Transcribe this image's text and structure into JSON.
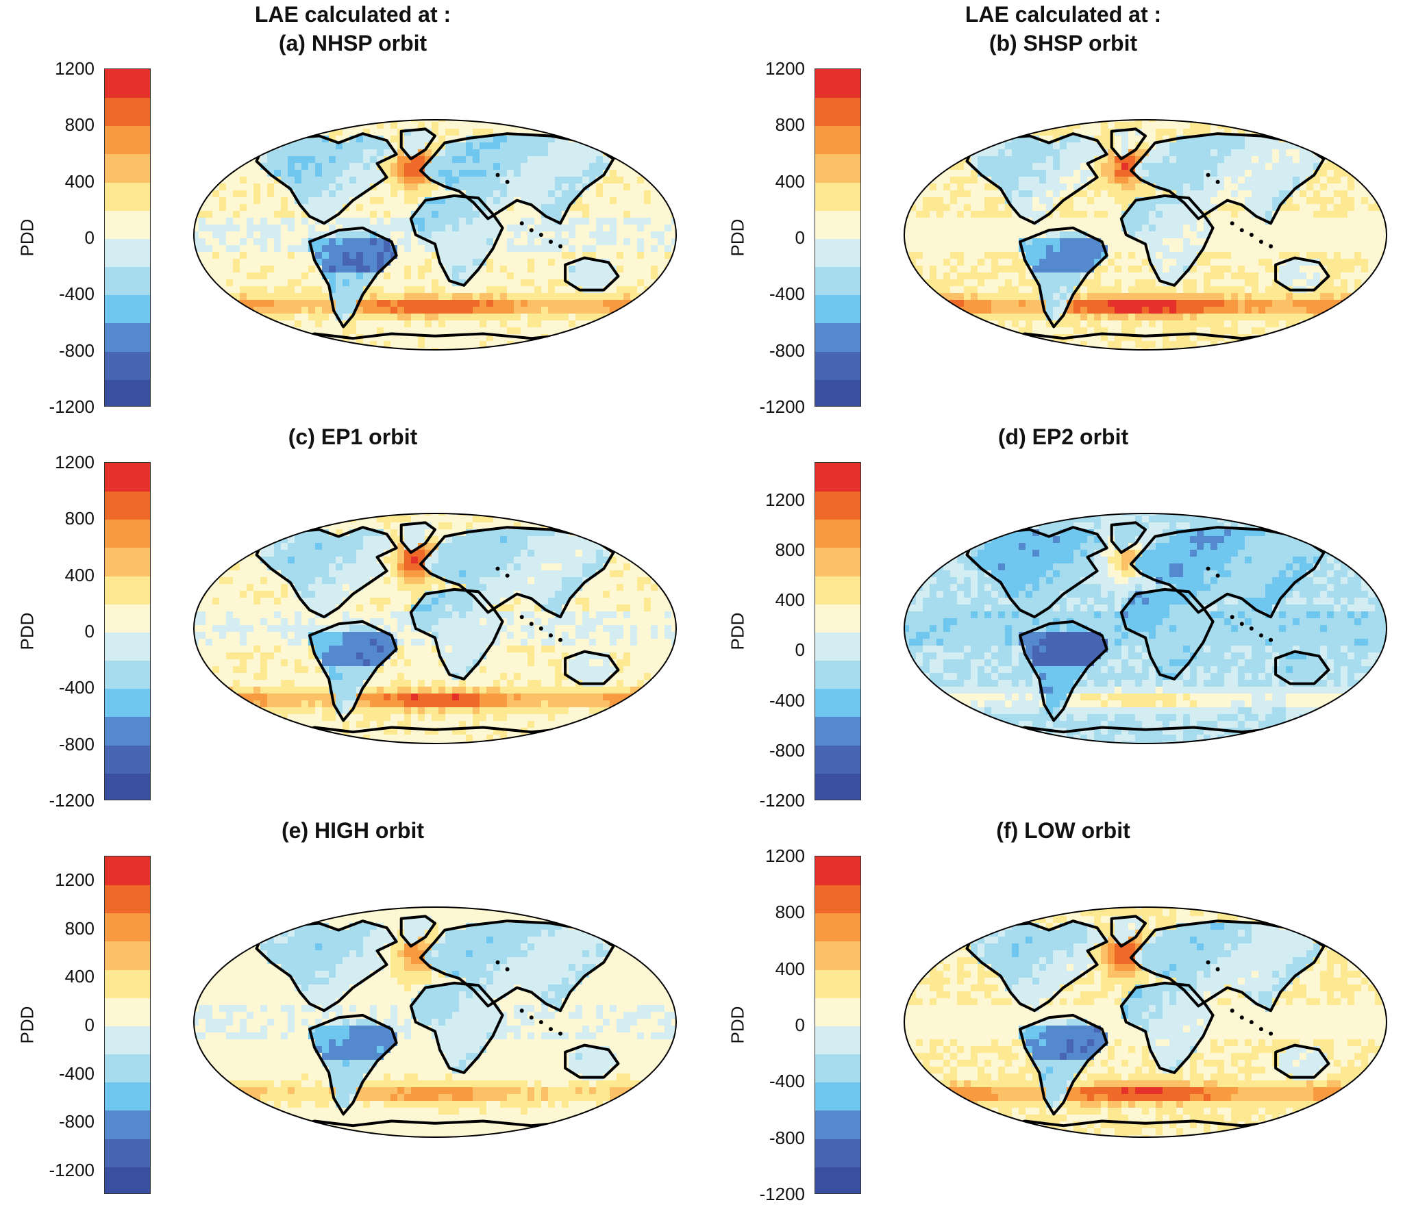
{
  "colormap": [
    "#3a4fa0",
    "#4765b2",
    "#5589cd",
    "#6fc6ef",
    "#a6dcee",
    "#d4edf2",
    "#fdf7d4",
    "#fde992",
    "#fcc166",
    "#f79a40",
    "#ef6a28",
    "#e4312a"
  ],
  "land_outline_color": "#000000",
  "panels": [
    {
      "title_top": "LAE calculated at :",
      "title": "(a) NHSP orbit",
      "ylabel": "PDD",
      "cbar": {
        "min": -1200,
        "max": 1200,
        "ticks": [
          1200,
          800,
          400,
          0,
          -400,
          -800,
          -1200
        ]
      }
    },
    {
      "title_top": "LAE calculated at :",
      "title": "(b) SHSP orbit",
      "ylabel": "PDD",
      "cbar": {
        "min": -1200,
        "max": 1200,
        "ticks": [
          1200,
          800,
          400,
          0,
          -400,
          -800,
          -1200
        ]
      }
    },
    {
      "title_top": "",
      "title": "(c) EP1 orbit",
      "ylabel": "PDD",
      "cbar": {
        "min": -1200,
        "max": 1200,
        "ticks": [
          1200,
          800,
          400,
          0,
          -400,
          -800,
          -1200
        ]
      }
    },
    {
      "title_top": "",
      "title": "(d) EP2 orbit",
      "ylabel": "PDD",
      "cbar": {
        "min": -1200,
        "max": 1500,
        "ticks": [
          1200,
          800,
          400,
          0,
          -400,
          -800,
          -1200
        ]
      }
    },
    {
      "title_top": "",
      "title": "(e) HIGH orbit",
      "ylabel": "PDD",
      "cbar": {
        "min": -1400,
        "max": 1400,
        "ticks": [
          1200,
          800,
          400,
          0,
          -400,
          -800,
          -1200
        ]
      }
    },
    {
      "title_top": "",
      "title": "(f) LOW orbit",
      "ylabel": "PDD",
      "cbar": {
        "min": -1200,
        "max": 1200,
        "ticks": [
          1200,
          800,
          400,
          0,
          -400,
          -800,
          -1200
        ]
      }
    }
  ]
}
